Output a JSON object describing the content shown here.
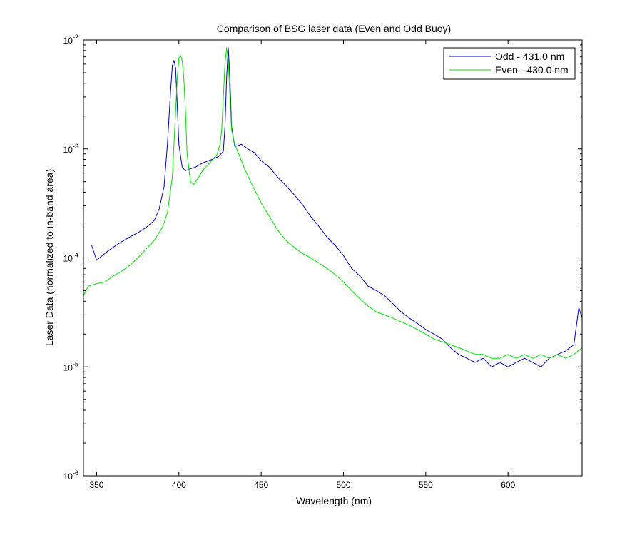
{
  "chart_data": {
    "type": "line",
    "title": "Comparison of BSG laser data (Even and Odd Buoy)",
    "xlabel": "Wavelength (nm)",
    "ylabel": "Laser Data (normalized to in-band area)",
    "xlim": [
      342,
      645
    ],
    "ylim": [
      1e-06,
      0.01
    ],
    "yscale": "log",
    "xticks": [
      350,
      400,
      450,
      500,
      550,
      600
    ],
    "yticks": [
      {
        "value": 1e-06,
        "base": "10",
        "exp": "-6"
      },
      {
        "value": 1e-05,
        "base": "10",
        "exp": "-5"
      },
      {
        "value": 0.0001,
        "base": "10",
        "exp": "-4"
      },
      {
        "value": 0.001,
        "base": "10",
        "exp": "-3"
      },
      {
        "value": 0.01,
        "base": "10",
        "exp": "-2"
      }
    ],
    "grid": false,
    "legend_position": "top-right",
    "series": [
      {
        "name": "Odd - 431.0 nm",
        "color": "#0000b8",
        "x": [
          347,
          350,
          355,
          360,
          365,
          370,
          375,
          380,
          385,
          388,
          391,
          393,
          395,
          396,
          397,
          398,
          399,
          400,
          402,
          404,
          406,
          410,
          415,
          420,
          424,
          427,
          428,
          429,
          430,
          431,
          432,
          434,
          438,
          442,
          446,
          450,
          455,
          460,
          465,
          470,
          475,
          480,
          485,
          490,
          495,
          500,
          505,
          510,
          515,
          520,
          525,
          530,
          535,
          540,
          545,
          550,
          555,
          560,
          565,
          570,
          575,
          580,
          585,
          590,
          595,
          600,
          605,
          610,
          615,
          620,
          625,
          630,
          635,
          640,
          643,
          645
        ],
        "y": [
          0.00013,
          9.5e-05,
          0.00011,
          0.000125,
          0.00014,
          0.000155,
          0.00017,
          0.00019,
          0.00022,
          0.00028,
          0.00045,
          0.0011,
          0.0035,
          0.0058,
          0.0065,
          0.0055,
          0.0025,
          0.0011,
          0.00068,
          0.00063,
          0.00065,
          0.00068,
          0.00075,
          0.0008,
          0.00085,
          0.00095,
          0.0016,
          0.0045,
          0.0085,
          0.0045,
          0.0016,
          0.00105,
          0.0011,
          0.001,
          0.00092,
          0.00078,
          0.00068,
          0.00055,
          0.00046,
          0.00038,
          0.00031,
          0.00024,
          0.000195,
          0.000155,
          0.00013,
          0.000105,
          8e-05,
          6.8e-05,
          5.5e-05,
          5e-05,
          4.5e-05,
          3.8e-05,
          3.2e-05,
          2.8e-05,
          2.5e-05,
          2.2e-05,
          2e-05,
          1.8e-05,
          1.5e-05,
          1.3e-05,
          1.2e-05,
          1.1e-05,
          1.2e-05,
          1e-05,
          1.1e-05,
          1e-05,
          1.1e-05,
          1.2e-05,
          1.1e-05,
          1e-05,
          1.2e-05,
          1.3e-05,
          1.4e-05,
          1.6e-05,
          3.5e-05,
          2.8e-05
        ]
      },
      {
        "name": "Even - 430.0 nm",
        "color": "#00e000",
        "x": [
          342,
          345,
          350,
          355,
          360,
          365,
          370,
          375,
          380,
          385,
          390,
          393,
          396,
          398,
          399,
          400,
          401,
          402,
          403,
          404,
          405,
          407,
          409,
          412,
          415,
          420,
          423,
          425,
          426,
          427,
          428,
          429,
          430,
          431,
          432,
          434,
          437,
          440,
          445,
          450,
          455,
          460,
          465,
          470,
          475,
          480,
          485,
          490,
          495,
          500,
          505,
          510,
          515,
          520,
          525,
          530,
          535,
          540,
          545,
          550,
          555,
          560,
          565,
          570,
          575,
          580,
          585,
          590,
          595,
          600,
          605,
          610,
          615,
          620,
          625,
          630,
          635,
          640,
          645
        ],
        "y": [
          4.5e-05,
          5.5e-05,
          5.8e-05,
          6e-05,
          6.8e-05,
          7.5e-05,
          8.5e-05,
          0.0001,
          0.00012,
          0.000145,
          0.00019,
          0.00026,
          0.00055,
          0.0022,
          0.0045,
          0.0068,
          0.0072,
          0.0065,
          0.0045,
          0.0022,
          0.0009,
          0.0005,
          0.00047,
          0.00055,
          0.00065,
          0.00078,
          0.00088,
          0.0011,
          0.0015,
          0.003,
          0.006,
          0.0085,
          0.0065,
          0.003,
          0.0015,
          0.0011,
          0.00085,
          0.00065,
          0.00045,
          0.00032,
          0.00024,
          0.00018,
          0.000145,
          0.000125,
          0.00011,
          0.0001,
          9e-05,
          8e-05,
          7e-05,
          6e-05,
          5e-05,
          4.2e-05,
          3.6e-05,
          3.2e-05,
          3e-05,
          2.8e-05,
          2.6e-05,
          2.4e-05,
          2.2e-05,
          2e-05,
          1.8e-05,
          1.7e-05,
          1.6e-05,
          1.5e-05,
          1.4e-05,
          1.3e-05,
          1.3e-05,
          1.2e-05,
          1.2e-05,
          1.3e-05,
          1.2e-05,
          1.3e-05,
          1.2e-05,
          1.3e-05,
          1.2e-05,
          1.3e-05,
          1.2e-05,
          1.3e-05,
          1.5e-05
        ]
      }
    ]
  }
}
